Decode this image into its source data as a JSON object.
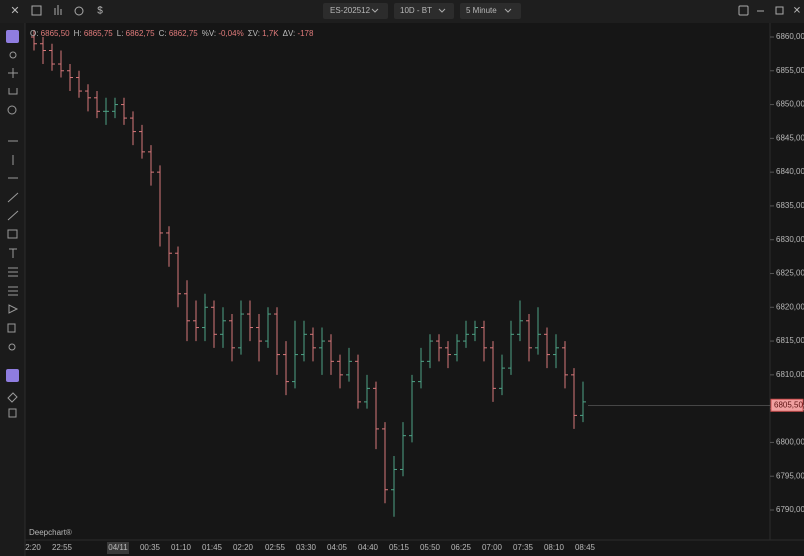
{
  "toolbar": {
    "symbol": "ES-202512",
    "range": "10D - BT",
    "interval": "5 Minute"
  },
  "info": [
    {
      "label": "O:",
      "value": "6865,50"
    },
    {
      "label": "H:",
      "value": "6865,75"
    },
    {
      "label": "L:",
      "value": "6862,75"
    },
    {
      "label": "C:",
      "value": "6862,75"
    },
    {
      "label": "%V:",
      "value": "-0,04%"
    },
    {
      "label": "ΣV:",
      "value": "1,7K"
    },
    {
      "label": "ΔV:",
      "value": "-178"
    }
  ],
  "watermark": "Deepchart®",
  "chart_data": {
    "type": "ohlc",
    "up_color": "#4fa387",
    "down_color": "#d7787b",
    "x_labels": [
      "2:20",
      "22:55",
      "04/11",
      "00:35",
      "01:10",
      "01:45",
      "02:20",
      "02:55",
      "03:30",
      "04:05",
      "04:40",
      "05:15",
      "05:50",
      "06:25",
      "07:00",
      "07:35",
      "08:10",
      "08:45"
    ],
    "open": [
      6860,
      6859,
      6858,
      6856,
      6855,
      6854,
      6852,
      6851,
      6849,
      6849,
      6850,
      6848,
      6846,
      6843,
      6840,
      6831,
      6828,
      6822,
      6818,
      6817,
      6820,
      6816,
      6818,
      6814,
      6819,
      6817,
      6815,
      6819,
      6813,
      6809,
      6813,
      6816,
      6814,
      6815,
      6812,
      6810,
      6812,
      6806,
      6808,
      6802,
      6793,
      6796,
      6801,
      6809,
      6812,
      6815,
      6814,
      6813,
      6815,
      6816,
      6817,
      6814,
      6808,
      6811,
      6816,
      6818,
      6814,
      6816,
      6813,
      6814,
      6810,
      6804
    ],
    "high": [
      6861,
      6860,
      6859,
      6858,
      6856,
      6855,
      6853,
      6852,
      6851,
      6851,
      6851,
      6849,
      6847,
      6844,
      6841,
      6832,
      6829,
      6824,
      6821,
      6822,
      6821,
      6820,
      6819,
      6821,
      6821,
      6819,
      6820,
      6820,
      6815,
      6818,
      6818,
      6817,
      6817,
      6816,
      6813,
      6814,
      6813,
      6810,
      6809,
      6803,
      6798,
      6803,
      6810,
      6814,
      6816,
      6816,
      6815,
      6816,
      6818,
      6818,
      6818,
      6815,
      6813,
      6818,
      6821,
      6819,
      6820,
      6817,
      6816,
      6815,
      6811,
      6809
    ],
    "low": [
      6858,
      6856,
      6855,
      6854,
      6852,
      6851,
      6849,
      6848,
      6847,
      6848,
      6847,
      6844,
      6842,
      6838,
      6829,
      6826,
      6820,
      6815,
      6815,
      6815,
      6814,
      6814,
      6812,
      6813,
      6815,
      6812,
      6814,
      6810,
      6807,
      6808,
      6812,
      6812,
      6810,
      6810,
      6808,
      6809,
      6805,
      6805,
      6799,
      6791,
      6789,
      6795,
      6800,
      6808,
      6811,
      6812,
      6811,
      6812,
      6814,
      6815,
      6812,
      6806,
      6807,
      6810,
      6815,
      6812,
      6813,
      6811,
      6811,
      6808,
      6802,
      6803
    ],
    "close": [
      6859,
      6858,
      6856,
      6855,
      6854,
      6852,
      6851,
      6849,
      6849,
      6850,
      6848,
      6846,
      6843,
      6840,
      6831,
      6828,
      6822,
      6818,
      6817,
      6820,
      6816,
      6818,
      6814,
      6819,
      6817,
      6815,
      6819,
      6813,
      6809,
      6813,
      6816,
      6814,
      6815,
      6812,
      6810,
      6812,
      6806,
      6808,
      6802,
      6793,
      6796,
      6801,
      6809,
      6812,
      6815,
      6814,
      6813,
      6815,
      6816,
      6817,
      6814,
      6808,
      6811,
      6816,
      6818,
      6814,
      6816,
      6813,
      6814,
      6810,
      6804,
      6806
    ],
    "ylim": [
      6785.56,
      6861.33
    ],
    "yticks": [
      {
        "value": 6860,
        "label": "6860,00"
      },
      {
        "value": 6855,
        "label": "6855,00"
      },
      {
        "value": 6850,
        "label": "6850,00"
      },
      {
        "value": 6845,
        "label": "6845,00"
      },
      {
        "value": 6840,
        "label": "6840,00"
      },
      {
        "value": 6835,
        "label": "6835,00"
      },
      {
        "value": 6830,
        "label": "6830,00"
      },
      {
        "value": 6825,
        "label": "6825,00"
      },
      {
        "value": 6820,
        "label": "6820,00"
      },
      {
        "value": 6815,
        "label": "6815,00"
      },
      {
        "value": 6810,
        "label": "6810,00"
      },
      {
        "value": 6805,
        "label": "6805,00"
      },
      {
        "value": 6800,
        "label": "6800,00"
      },
      {
        "value": 6795,
        "label": "6795,00"
      },
      {
        "value": 6790,
        "label": "6790,00"
      }
    ],
    "last_price": {
      "value": 6805.5,
      "label": "6805,50"
    }
  }
}
